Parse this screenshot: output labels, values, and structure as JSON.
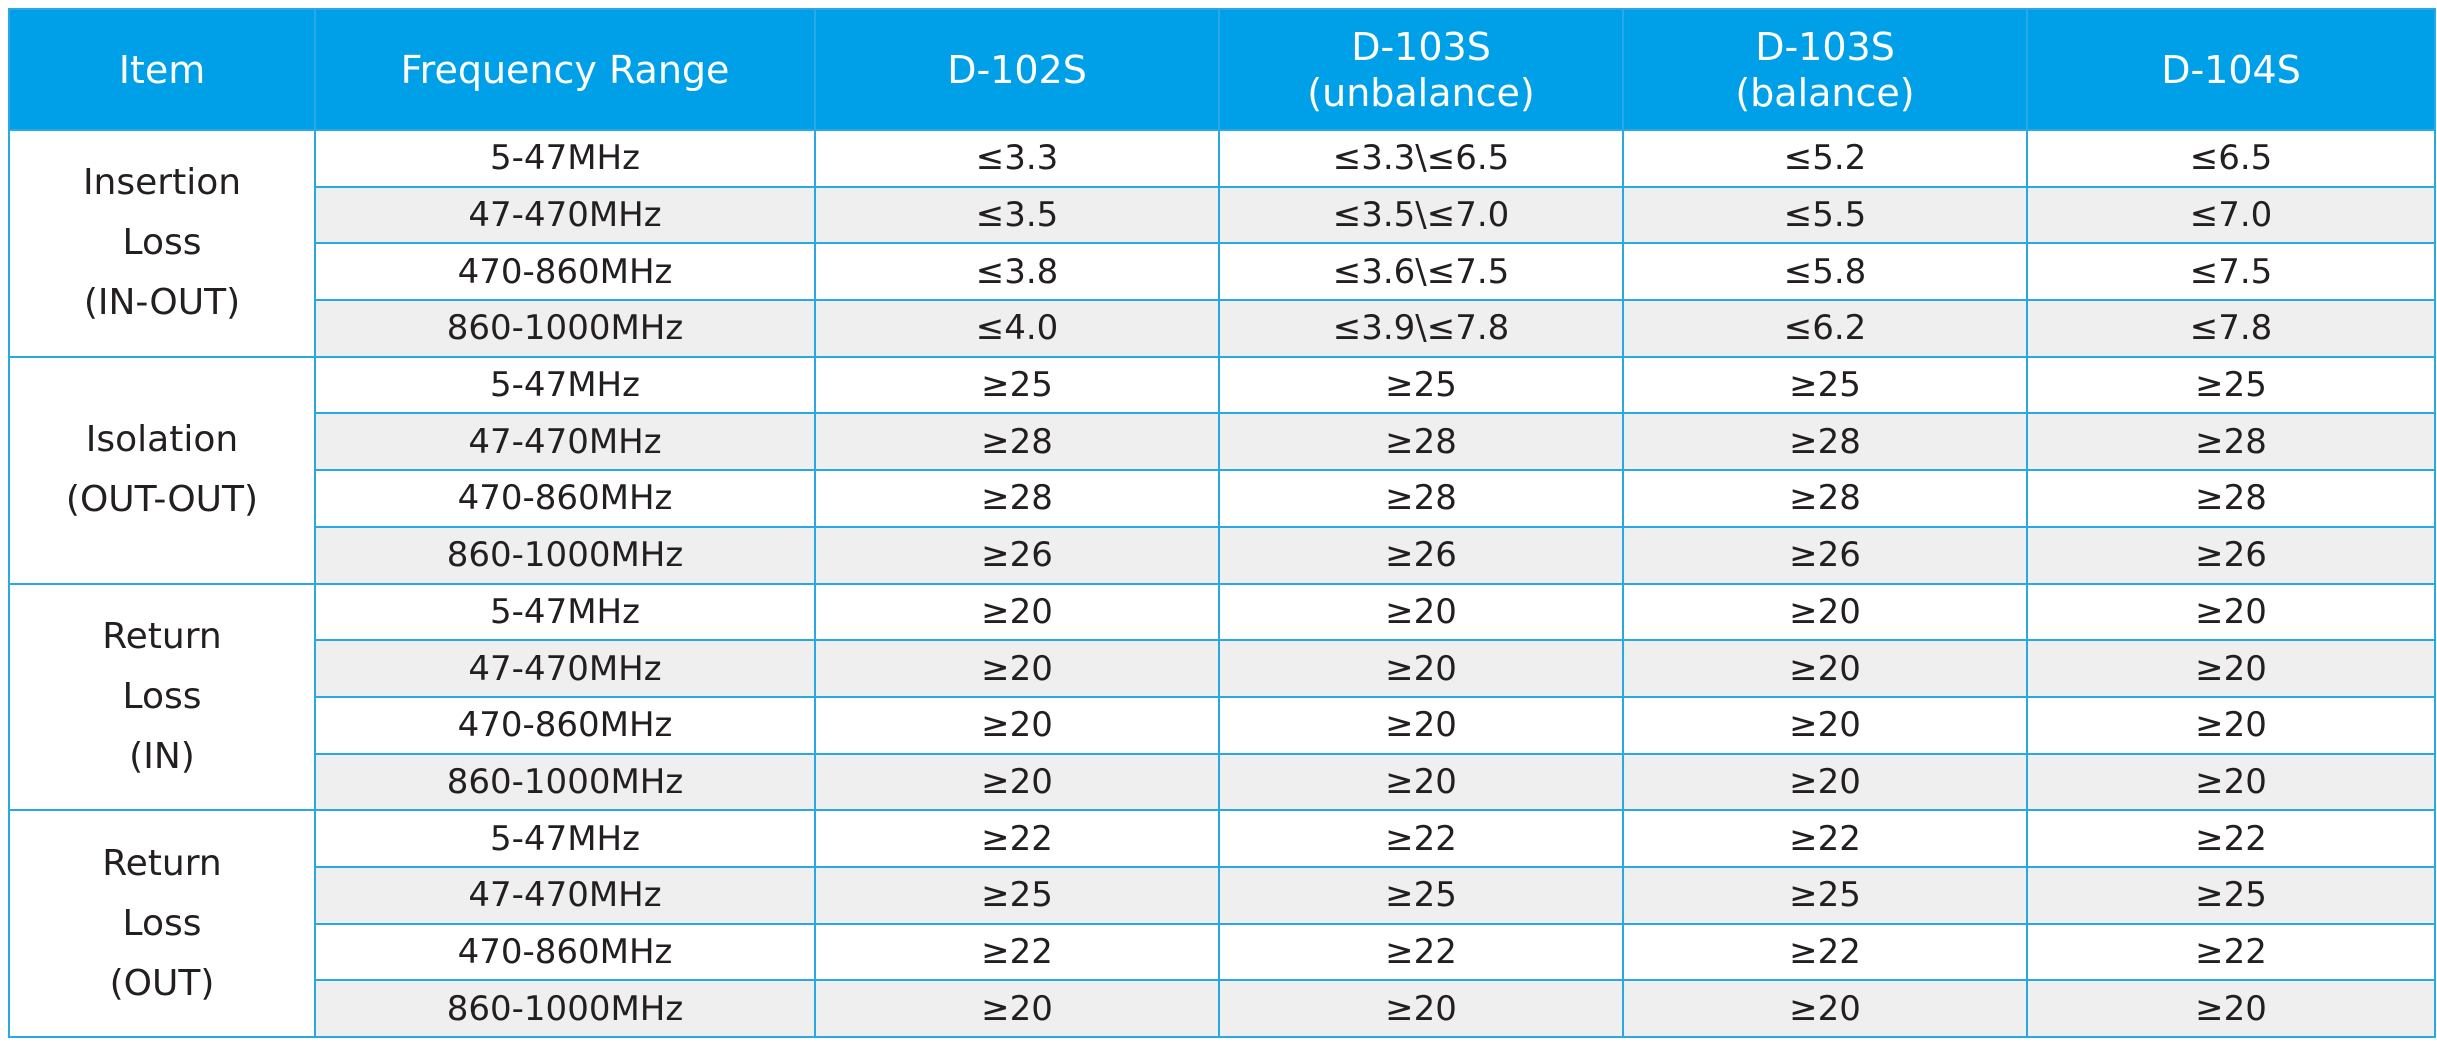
{
  "header": {
    "item": "Item",
    "frequency_range": "Frequency Range",
    "models": [
      {
        "lines": [
          "D-102S"
        ]
      },
      {
        "lines": [
          "D-103S",
          "(unbalance)"
        ]
      },
      {
        "lines": [
          "D-103S",
          "(balance)"
        ]
      },
      {
        "lines": [
          "D-104S"
        ]
      }
    ]
  },
  "groups": [
    {
      "item_lines": [
        "Insertion",
        "Loss",
        "(IN-OUT)"
      ],
      "rows": [
        {
          "freq": "5-47MHz",
          "values": [
            "≤3.3",
            "≤3.3\\≤6.5",
            "≤5.2",
            "≤6.5"
          ]
        },
        {
          "freq": "47-470MHz",
          "values": [
            "≤3.5",
            "≤3.5\\≤7.0",
            "≤5.5",
            "≤7.0"
          ]
        },
        {
          "freq": "470-860MHz",
          "values": [
            "≤3.8",
            "≤3.6\\≤7.5",
            "≤5.8",
            "≤7.5"
          ]
        },
        {
          "freq": "860-1000MHz",
          "values": [
            "≤4.0",
            "≤3.9\\≤7.8",
            "≤6.2",
            "≤7.8"
          ]
        }
      ]
    },
    {
      "item_lines": [
        "Isolation",
        "(OUT-OUT)"
      ],
      "rows": [
        {
          "freq": "5-47MHz",
          "values": [
            "≥25",
            "≥25",
            "≥25",
            "≥25"
          ]
        },
        {
          "freq": "47-470MHz",
          "values": [
            "≥28",
            "≥28",
            "≥28",
            "≥28"
          ]
        },
        {
          "freq": "470-860MHz",
          "values": [
            "≥28",
            "≥28",
            "≥28",
            "≥28"
          ]
        },
        {
          "freq": "860-1000MHz",
          "values": [
            "≥26",
            "≥26",
            "≥26",
            "≥26"
          ]
        }
      ]
    },
    {
      "item_lines": [
        "Return",
        "Loss",
        "(IN)"
      ],
      "rows": [
        {
          "freq": "5-47MHz",
          "values": [
            "≥20",
            "≥20",
            "≥20",
            "≥20"
          ]
        },
        {
          "freq": "47-470MHz",
          "values": [
            "≥20",
            "≥20",
            "≥20",
            "≥20"
          ]
        },
        {
          "freq": "470-860MHz",
          "values": [
            "≥20",
            "≥20",
            "≥20",
            "≥20"
          ]
        },
        {
          "freq": "860-1000MHz",
          "values": [
            "≥20",
            "≥20",
            "≥20",
            "≥20"
          ]
        }
      ]
    },
    {
      "item_lines": [
        "Return",
        "Loss",
        "(OUT)"
      ],
      "rows": [
        {
          "freq": "5-47MHz",
          "values": [
            "≥22",
            "≥22",
            "≥22",
            "≥22"
          ]
        },
        {
          "freq": "47-470MHz",
          "values": [
            "≥25",
            "≥25",
            "≥25",
            "≥25"
          ]
        },
        {
          "freq": "470-860MHz",
          "values": [
            "≥22",
            "≥22",
            "≥22",
            "≥22"
          ]
        },
        {
          "freq": "860-1000MHz",
          "values": [
            "≥20",
            "≥20",
            "≥20",
            "≥20"
          ]
        }
      ]
    }
  ],
  "colors": {
    "header_bg": "#00a0e9",
    "header_text": "#ffffff",
    "grid_line": "#2aa8e6",
    "alt_row_bg": "#efefef"
  }
}
